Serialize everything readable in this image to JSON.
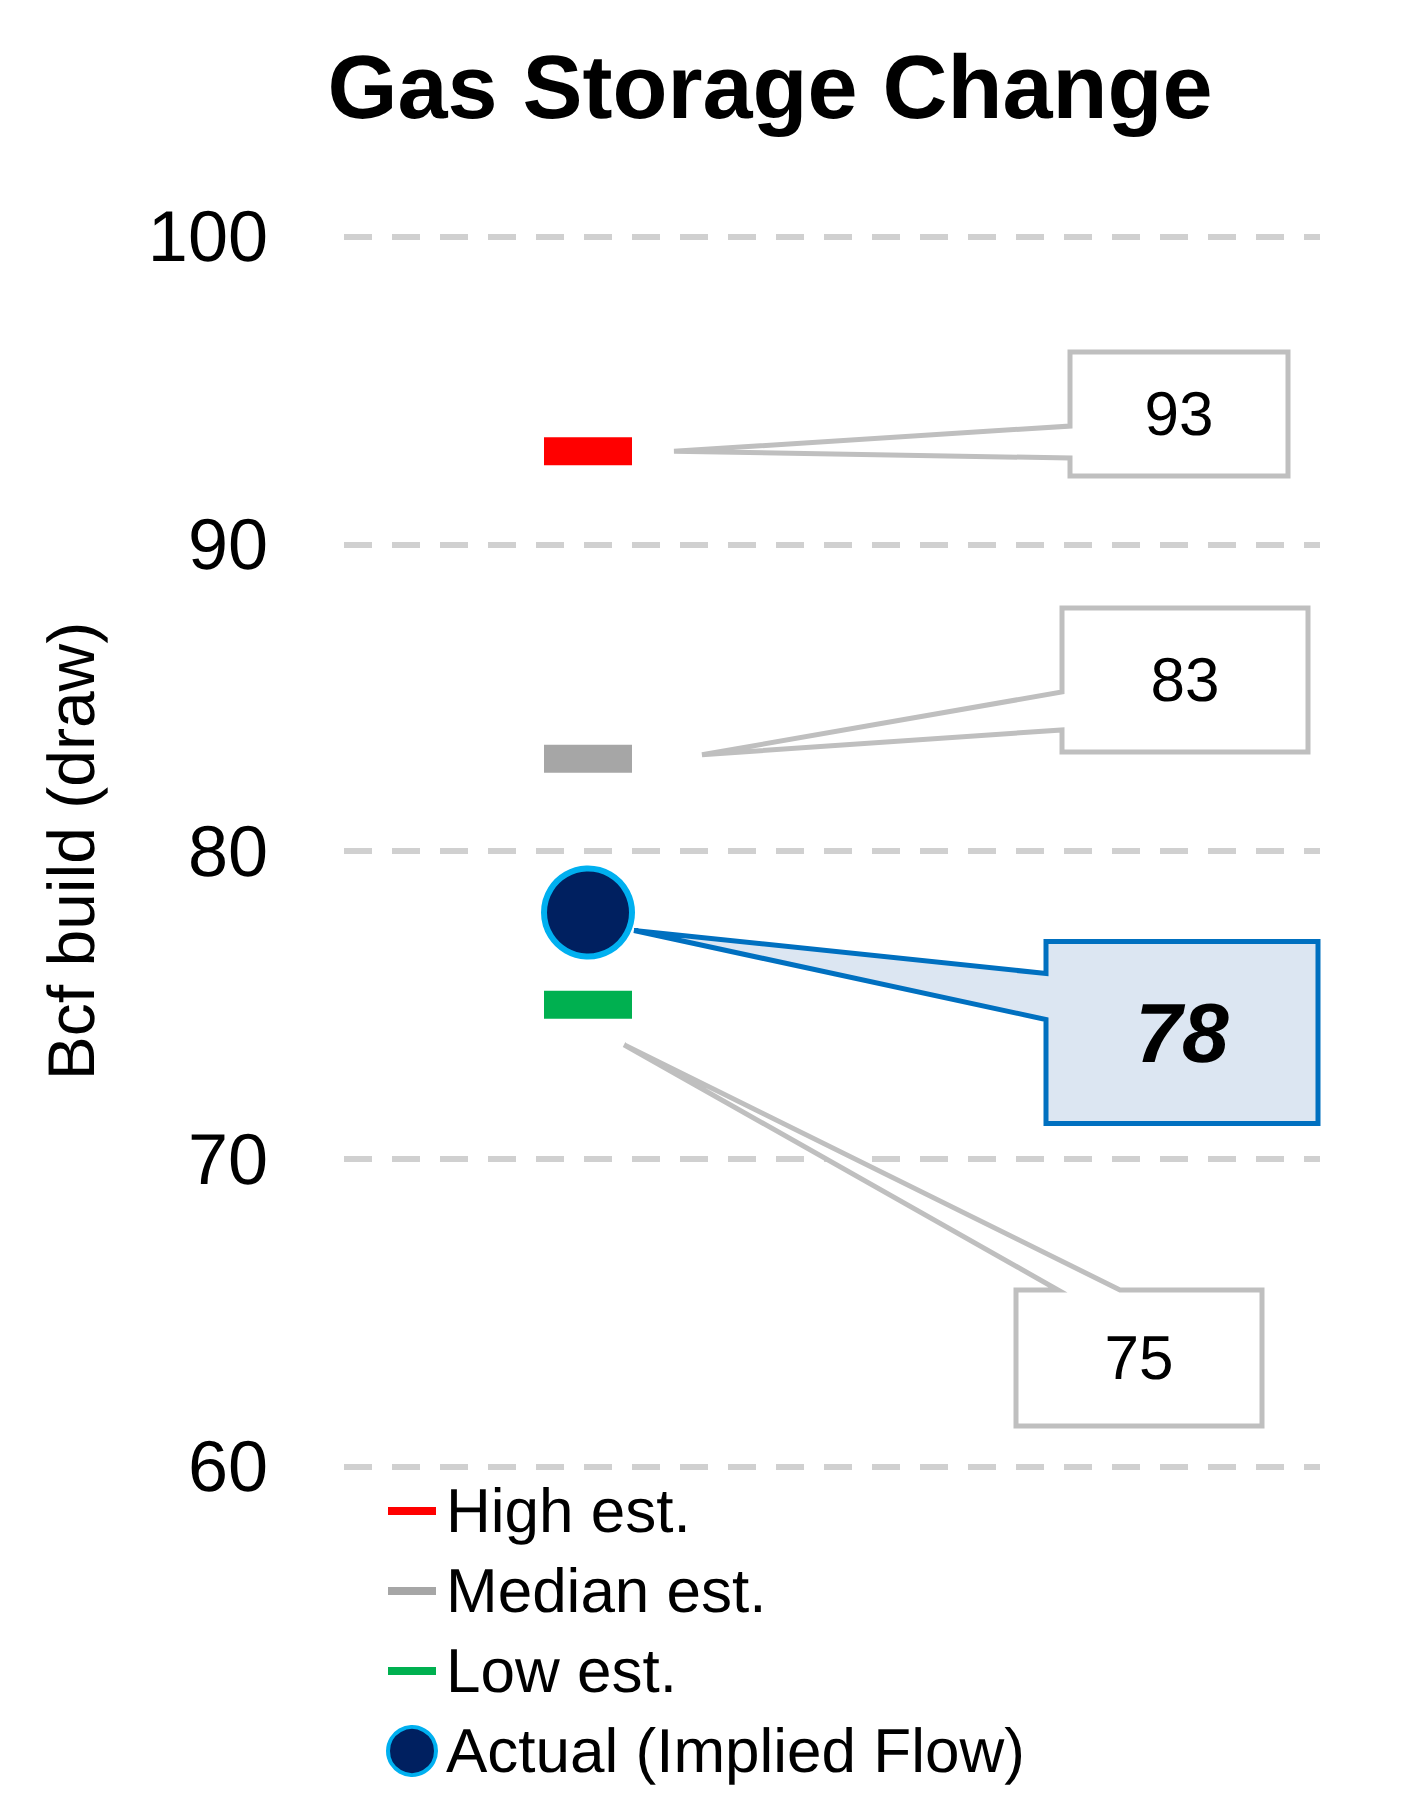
{
  "chart_data": {
    "type": "scatter",
    "title": "Gas Storage Change",
    "ylabel": "Bcf build (draw)",
    "categories": [
      null,
      null
    ],
    "series": [
      {
        "name": "High est.",
        "color": "#ff0000",
        "marker": "square",
        "values": [
          93,
          null
        ]
      },
      {
        "name": "Median est.",
        "color": "#a6a6a6",
        "marker": "square",
        "values": [
          83,
          null
        ]
      },
      {
        "name": "Low est.",
        "color": "#00b050",
        "marker": "square",
        "values": [
          75,
          null
        ]
      },
      {
        "name": "Actual (Implied Flow)",
        "color": "#002060",
        "marker": "circle",
        "values": [
          78,
          null
        ]
      }
    ],
    "annotations": [
      "93",
      "83",
      "78",
      "75"
    ],
    "ylim": [
      60,
      100
    ],
    "yticks": [
      60,
      70,
      80,
      90,
      100
    ],
    "grid": "y",
    "legend": "bottom left"
  }
}
